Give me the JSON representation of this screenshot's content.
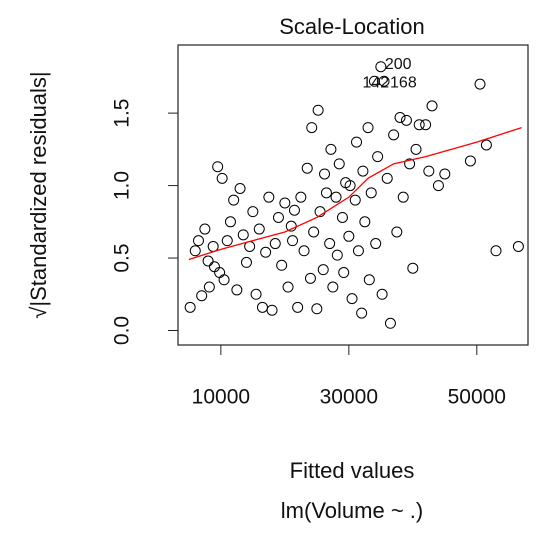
{
  "chart_data": {
    "type": "scatter",
    "title": "Scale-Location",
    "xlabel": "Fitted values",
    "subtitle": "lm(Volume ~ .)",
    "ylabel": "√|Standardized residuals|",
    "xlim": [
      3300,
      58000
    ],
    "ylim": [
      -0.1,
      1.97
    ],
    "xticks": [
      10000,
      30000,
      50000
    ],
    "yticks": [
      {
        "value": 0,
        "label": "0.0"
      },
      0.5,
      {
        "value": 1,
        "label": "1.0"
      },
      1.5
    ],
    "series": [
      {
        "color": "#000000",
        "x": [
          5200,
          6000,
          6500,
          7000,
          7500,
          8000,
          8200,
          8800,
          9000,
          9500,
          9800,
          10200,
          10500,
          11000,
          11500,
          12000,
          12500,
          13000,
          13500,
          14000,
          14500,
          15000,
          15500,
          16000,
          16500,
          17000,
          17500,
          18000,
          18500,
          19000,
          19500,
          20000,
          20500,
          21000,
          21200,
          21500,
          22000,
          22500,
          23000,
          23500,
          24000,
          24200,
          24500,
          25000,
          25200,
          25500,
          26000,
          26200,
          26500,
          27000,
          27200,
          27500,
          28000,
          28200,
          28500,
          29000,
          29200,
          29500,
          30000,
          30200,
          30500,
          31000,
          31200,
          31500,
          32000,
          32200,
          32500,
          33000,
          33200,
          33500,
          34000,
          34200,
          34500,
          35000,
          35200,
          35500,
          36000,
          36500,
          37000,
          37500,
          38000,
          38500,
          39000,
          39500,
          40000,
          40500,
          41000,
          42000,
          42500,
          43000,
          44000,
          45000,
          49000,
          50500,
          51500,
          53000,
          56500
        ],
        "y": [
          0.16,
          0.55,
          0.62,
          0.24,
          0.7,
          0.48,
          0.3,
          0.58,
          0.44,
          1.13,
          0.4,
          1.05,
          0.35,
          0.62,
          0.75,
          0.9,
          0.28,
          0.98,
          0.66,
          0.47,
          0.58,
          0.82,
          0.25,
          0.7,
          0.16,
          0.54,
          0.92,
          0.14,
          0.6,
          0.78,
          0.45,
          0.88,
          0.3,
          0.72,
          0.62,
          0.83,
          0.16,
          0.92,
          0.55,
          1.12,
          0.36,
          1.4,
          0.68,
          0.15,
          1.52,
          0.82,
          0.42,
          1.08,
          0.95,
          0.6,
          1.25,
          0.3,
          0.92,
          0.52,
          1.15,
          0.78,
          0.4,
          1.02,
          0.65,
          1.0,
          0.22,
          0.9,
          1.3,
          0.55,
          0.12,
          1.1,
          0.75,
          1.4,
          0.35,
          0.95,
          1.72,
          0.6,
          1.2,
          1.82,
          0.25,
          1.72,
          1.05,
          0.05,
          1.35,
          0.68,
          1.47,
          0.92,
          1.45,
          1.15,
          0.43,
          1.25,
          1.42,
          1.42,
          1.1,
          1.55,
          1.0,
          1.08,
          1.17,
          1.7,
          1.28,
          0.55,
          0.58
        ]
      },
      {
        "color": "#ff0000",
        "x": [
          5000,
          10000,
          15000,
          20000,
          25000,
          30000,
          33000,
          37000,
          42000,
          50000,
          57000
        ],
        "y": [
          0.49,
          0.56,
          0.62,
          0.68,
          0.78,
          0.92,
          1.05,
          1.15,
          1.2,
          1.3,
          1.4
        ]
      }
    ],
    "annotations": [
      {
        "label": "200",
        "x": 35000,
        "y": 1.82
      },
      {
        "label": "142",
        "x": 34000,
        "y": 1.72
      },
      {
        "label": "168",
        "x": 35500,
        "y": 1.72
      }
    ]
  }
}
